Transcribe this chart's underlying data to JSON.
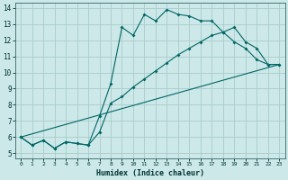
{
  "xlabel": "Humidex (Indice chaleur)",
  "bg_color": "#cce8e8",
  "grid_color": "#aacccc",
  "line_color": "#006666",
  "xlim": [
    -0.5,
    23.5
  ],
  "ylim": [
    4.7,
    14.3
  ],
  "xticks": [
    0,
    1,
    2,
    3,
    4,
    5,
    6,
    7,
    8,
    9,
    10,
    11,
    12,
    13,
    14,
    15,
    16,
    17,
    18,
    19,
    20,
    21,
    22,
    23
  ],
  "yticks": [
    5,
    6,
    7,
    8,
    9,
    10,
    11,
    12,
    13,
    14
  ],
  "line1_x": [
    0,
    1,
    2,
    3,
    4,
    5,
    6,
    7,
    8,
    9,
    10,
    11,
    12,
    13,
    14,
    15,
    16,
    17,
    18,
    19,
    20,
    21,
    22,
    23
  ],
  "line1_y": [
    6.0,
    5.5,
    5.8,
    5.3,
    5.7,
    5.6,
    5.5,
    7.3,
    9.3,
    12.8,
    12.3,
    13.6,
    13.2,
    13.9,
    13.6,
    13.5,
    13.2,
    13.2,
    12.5,
    11.9,
    11.5,
    10.8,
    10.5,
    10.5
  ],
  "line2_x": [
    0,
    1,
    2,
    3,
    4,
    5,
    6,
    7,
    8,
    9,
    10,
    11,
    12,
    13,
    14,
    15,
    16,
    17,
    18,
    19,
    20,
    21,
    22,
    23
  ],
  "line2_y": [
    6.0,
    5.5,
    5.8,
    5.3,
    5.7,
    5.6,
    5.5,
    6.3,
    8.1,
    8.5,
    9.1,
    9.6,
    10.1,
    10.6,
    11.1,
    11.5,
    11.9,
    12.3,
    12.5,
    12.8,
    11.9,
    11.5,
    10.5,
    10.5
  ],
  "line3_x": [
    0,
    23
  ],
  "line3_y": [
    6.0,
    10.5
  ]
}
